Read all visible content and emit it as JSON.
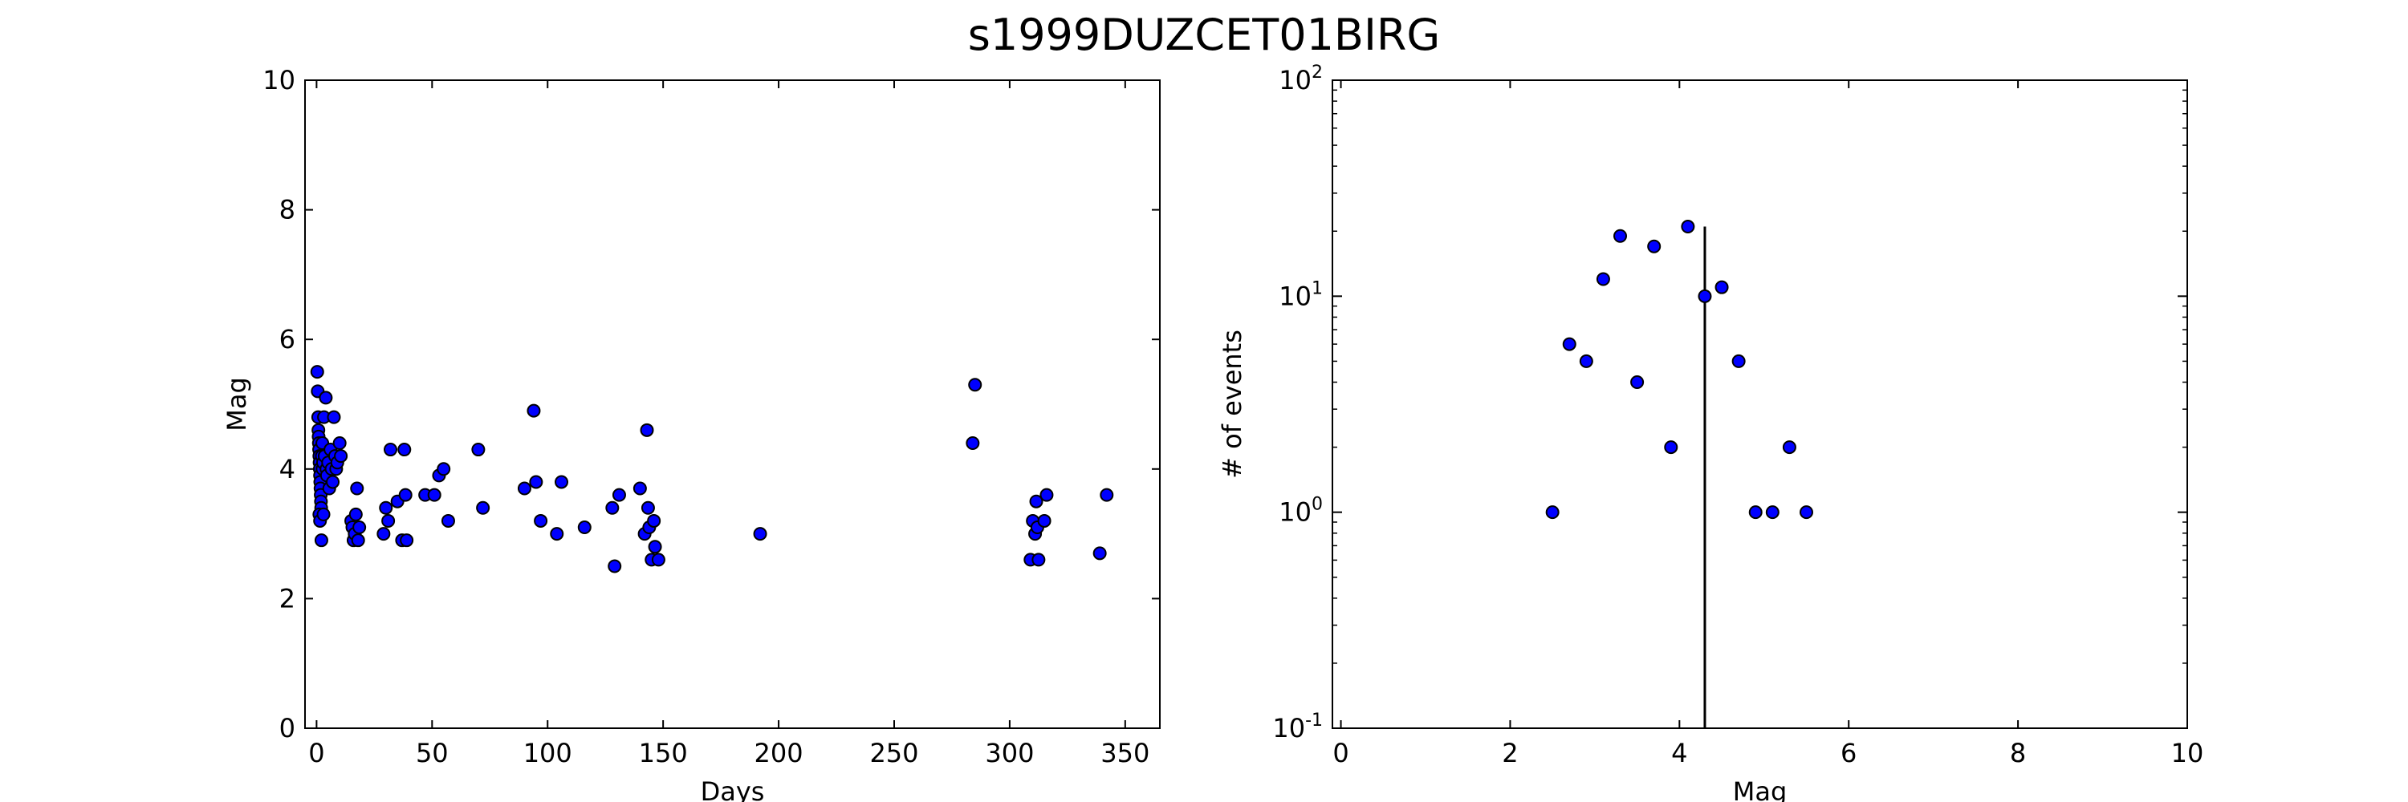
{
  "title": "s1999DUZCET01BIRG",
  "chart_data": [
    {
      "type": "scatter",
      "xlabel": "Days",
      "ylabel": "Mag",
      "xlim": [
        -5,
        365
      ],
      "ylim": [
        0,
        10
      ],
      "xticks": [
        0,
        50,
        100,
        150,
        200,
        250,
        300,
        350
      ],
      "yticks": [
        0,
        2,
        4,
        6,
        8,
        10
      ],
      "marker_color": "#0000ff",
      "points": [
        [
          0.3,
          5.5
        ],
        [
          0.5,
          5.2
        ],
        [
          0.7,
          4.8
        ],
        [
          0.8,
          4.6
        ],
        [
          0.9,
          4.5
        ],
        [
          1.0,
          4.4
        ],
        [
          1.1,
          4.3
        ],
        [
          1.2,
          4.2
        ],
        [
          1.3,
          4.1
        ],
        [
          1.4,
          4.0
        ],
        [
          1.5,
          3.9
        ],
        [
          1.6,
          3.8
        ],
        [
          1.7,
          3.7
        ],
        [
          1.8,
          3.6
        ],
        [
          1.9,
          3.5
        ],
        [
          2.0,
          3.4
        ],
        [
          1.2,
          3.3
        ],
        [
          1.5,
          3.2
        ],
        [
          2.1,
          2.9
        ],
        [
          2.3,
          4.2
        ],
        [
          2.5,
          4.4
        ],
        [
          2.6,
          4.0
        ],
        [
          2.8,
          4.1
        ],
        [
          3.0,
          3.3
        ],
        [
          3.2,
          4.8
        ],
        [
          3.5,
          4.2
        ],
        [
          4.0,
          5.1
        ],
        [
          4.3,
          4.0
        ],
        [
          4.5,
          3.9
        ],
        [
          5.0,
          4.1
        ],
        [
          5.5,
          3.7
        ],
        [
          6.0,
          4.3
        ],
        [
          6.5,
          4.0
        ],
        [
          7.0,
          3.8
        ],
        [
          7.5,
          4.8
        ],
        [
          8.0,
          4.2
        ],
        [
          8.5,
          4.0
        ],
        [
          9.0,
          4.1
        ],
        [
          10.0,
          4.4
        ],
        [
          10.5,
          4.2
        ],
        [
          15,
          3.2
        ],
        [
          15.5,
          3.1
        ],
        [
          16,
          2.9
        ],
        [
          16.5,
          3.0
        ],
        [
          17,
          3.3
        ],
        [
          17.5,
          3.7
        ],
        [
          18,
          2.9
        ],
        [
          18.5,
          3.1
        ],
        [
          29,
          3.0
        ],
        [
          30,
          3.4
        ],
        [
          31,
          3.2
        ],
        [
          32,
          4.3
        ],
        [
          35,
          3.5
        ],
        [
          37,
          2.9
        ],
        [
          38,
          4.3
        ],
        [
          38.5,
          3.6
        ],
        [
          39,
          2.9
        ],
        [
          47,
          3.6
        ],
        [
          51,
          3.6
        ],
        [
          53,
          3.9
        ],
        [
          55,
          4.0
        ],
        [
          57,
          3.2
        ],
        [
          70,
          4.3
        ],
        [
          72,
          3.4
        ],
        [
          90,
          3.7
        ],
        [
          94,
          4.9
        ],
        [
          95,
          3.8
        ],
        [
          97,
          3.2
        ],
        [
          104,
          3.0
        ],
        [
          106,
          3.8
        ],
        [
          116,
          3.1
        ],
        [
          128,
          3.4
        ],
        [
          129,
          2.5
        ],
        [
          131,
          3.6
        ],
        [
          140,
          3.7
        ],
        [
          142,
          3.0
        ],
        [
          143,
          4.6
        ],
        [
          143.5,
          3.4
        ],
        [
          144,
          3.1
        ],
        [
          145,
          2.6
        ],
        [
          146,
          3.2
        ],
        [
          146.5,
          2.8
        ],
        [
          148,
          2.6
        ],
        [
          192,
          3.0
        ],
        [
          284,
          4.4
        ],
        [
          285,
          5.3
        ],
        [
          309,
          2.6
        ],
        [
          310,
          3.2
        ],
        [
          311,
          3.0
        ],
        [
          311.5,
          3.5
        ],
        [
          312,
          3.1
        ],
        [
          312.5,
          2.6
        ],
        [
          315,
          3.2
        ],
        [
          316,
          3.6
        ],
        [
          339,
          2.7
        ],
        [
          342,
          3.6
        ]
      ]
    },
    {
      "type": "scatter",
      "xlabel": "Mag",
      "ylabel": "# of events",
      "xlim": [
        -0.1,
        10
      ],
      "ylim": [
        0.1,
        100
      ],
      "yscale": "log",
      "xticks": [
        0,
        2,
        4,
        6,
        8,
        10
      ],
      "ytick_base": "10",
      "ytick_exponents": [
        "-1",
        "0",
        "1",
        "2"
      ],
      "marker_color": "#0000ff",
      "points": [
        [
          2.5,
          1
        ],
        [
          2.7,
          6
        ],
        [
          2.9,
          5
        ],
        [
          3.1,
          12
        ],
        [
          3.3,
          19
        ],
        [
          3.5,
          4
        ],
        [
          3.7,
          17
        ],
        [
          3.9,
          2
        ],
        [
          4.1,
          21
        ],
        [
          4.3,
          10
        ],
        [
          4.5,
          11
        ],
        [
          4.7,
          5
        ],
        [
          4.9,
          1
        ],
        [
          5.1,
          1
        ],
        [
          5.3,
          2
        ],
        [
          5.5,
          1
        ]
      ],
      "vline": {
        "x": 4.3,
        "ymin": 0.1,
        "ymax": 21
      }
    }
  ]
}
